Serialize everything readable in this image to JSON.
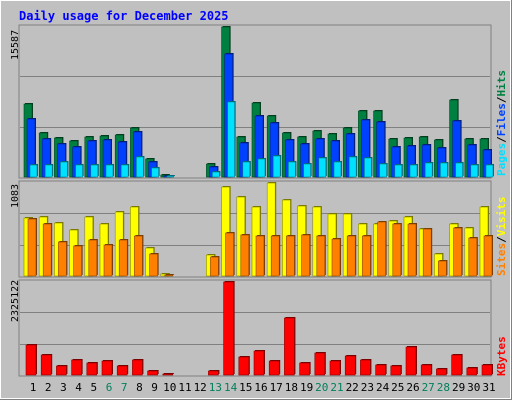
{
  "title": "Daily usage for December 2025",
  "colors": {
    "background": "#c0c0c0",
    "title": "#0000ff",
    "hits": "#008040",
    "files": "#0040ff",
    "pages": "#00e0ff",
    "visits": "#ffff00",
    "sites": "#ff8000",
    "kbytes": "#ff0000",
    "weekend": "#00805c"
  },
  "legend_top": {
    "pages": "Pages",
    "files": "Files",
    "hits": "Hits",
    "sep": "/"
  },
  "legend_mid": {
    "sites": "Sites",
    "visits": "Visits",
    "sep": "/"
  },
  "legend_bottom": {
    "kbytes": "KBytes"
  },
  "chart_data": [
    {
      "type": "bar",
      "name": "hits-files-pages",
      "y_max_label": "15587",
      "ylim": [
        0,
        15587
      ],
      "categories": [
        "1",
        "2",
        "3",
        "4",
        "5",
        "6",
        "7",
        "8",
        "9",
        "10",
        "11",
        "12",
        "13",
        "14",
        "15",
        "16",
        "17",
        "18",
        "19",
        "20",
        "21",
        "22",
        "23",
        "24",
        "25",
        "26",
        "27",
        "28",
        "29",
        "30",
        "31"
      ],
      "weekend_days": [
        "6",
        "7",
        "13",
        "14",
        "20",
        "21",
        "27",
        "28"
      ],
      "series": [
        {
          "name": "Hits",
          "values": [
            7600,
            4600,
            4100,
            3700,
            4200,
            4300,
            4400,
            5100,
            1900,
            200,
            0,
            0,
            1300,
            15587,
            4200,
            7700,
            6300,
            4600,
            4200,
            4800,
            4500,
            5100,
            6900,
            6900,
            4000,
            4100,
            4200,
            3800,
            8000,
            4000,
            4000
          ]
        },
        {
          "name": "Files",
          "values": [
            6000,
            3900,
            3400,
            3100,
            3700,
            3800,
            3600,
            4700,
            1600,
            150,
            0,
            0,
            1000,
            12800,
            3500,
            6300,
            5600,
            3800,
            3400,
            4000,
            3700,
            4500,
            5900,
            5700,
            3100,
            3200,
            3300,
            3000,
            5800,
            3300,
            2800
          ]
        },
        {
          "name": "Pages",
          "values": [
            1200,
            1200,
            1600,
            1200,
            1200,
            1200,
            1200,
            2100,
            900,
            100,
            0,
            0,
            500,
            7800,
            1600,
            1900,
            2200,
            1600,
            1300,
            2000,
            1600,
            2100,
            2000,
            1300,
            1200,
            1200,
            1500,
            1500,
            1500,
            1200,
            1200
          ]
        }
      ]
    },
    {
      "type": "bar",
      "name": "visits-sites",
      "y_max_label": "1083",
      "ylim": [
        0,
        1083
      ],
      "categories": [
        "1",
        "2",
        "3",
        "4",
        "5",
        "6",
        "7",
        "8",
        "9",
        "10",
        "11",
        "12",
        "13",
        "14",
        "15",
        "16",
        "17",
        "18",
        "19",
        "20",
        "21",
        "22",
        "23",
        "24",
        "25",
        "26",
        "27",
        "28",
        "29",
        "30",
        "31"
      ],
      "series": [
        {
          "name": "Visits",
          "values": [
            670,
            690,
            620,
            530,
            690,
            600,
            750,
            800,
            330,
            20,
            0,
            0,
            250,
            1040,
            920,
            800,
            1083,
            880,
            820,
            800,
            720,
            720,
            600,
            600,
            640,
            690,
            550,
            260,
            600,
            560,
            800
          ]
        },
        {
          "name": "Sites",
          "values": [
            660,
            610,
            400,
            350,
            420,
            360,
            420,
            460,
            260,
            10,
            0,
            0,
            220,
            500,
            480,
            470,
            460,
            460,
            480,
            460,
            430,
            470,
            470,
            630,
            600,
            610,
            550,
            170,
            560,
            440,
            470
          ]
        }
      ]
    },
    {
      "type": "bar",
      "name": "kbytes",
      "y_max_label": "2325122",
      "ylim": [
        0,
        2325122
      ],
      "categories": [
        "1",
        "2",
        "3",
        "4",
        "5",
        "6",
        "7",
        "8",
        "9",
        "10",
        "11",
        "12",
        "13",
        "14",
        "15",
        "16",
        "17",
        "18",
        "19",
        "20",
        "21",
        "22",
        "23",
        "24",
        "25",
        "26",
        "27",
        "28",
        "29",
        "30",
        "31"
      ],
      "series": [
        {
          "name": "KBytes",
          "values": [
            760000,
            490000,
            230000,
            370000,
            290000,
            340000,
            220000,
            370000,
            90000,
            20000,
            0,
            0,
            110000,
            2325122,
            460000,
            610000,
            340000,
            1420000,
            290000,
            550000,
            340000,
            470000,
            370000,
            240000,
            220000,
            690000,
            240000,
            140000,
            510000,
            180000,
            260000
          ]
        }
      ]
    }
  ]
}
